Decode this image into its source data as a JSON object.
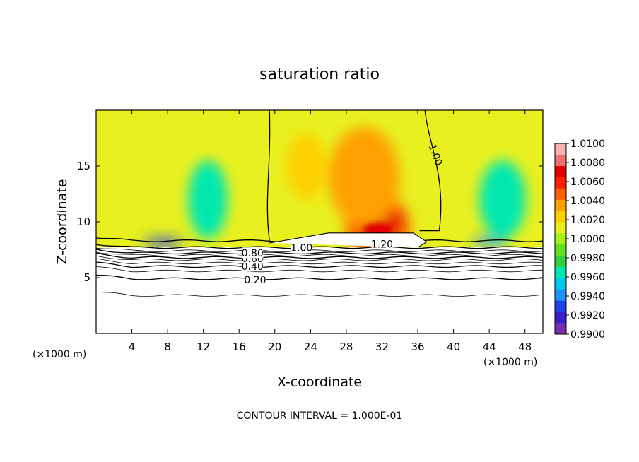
{
  "chart_data": {
    "type": "heatmap",
    "title": "saturation ratio",
    "xlabel": "X-coordinate",
    "ylabel": "Z-coordinate",
    "x_unit_left": "(×1000 m)",
    "x_unit_right": "(×1000 m)",
    "footer": "CONTOUR INTERVAL = 1.000E-01",
    "xlim": [
      0,
      50
    ],
    "ylim": [
      0,
      20
    ],
    "x_ticks": [
      4,
      8,
      12,
      16,
      20,
      24,
      28,
      32,
      36,
      40,
      44,
      48
    ],
    "y_ticks": [
      5,
      10,
      15
    ],
    "colorbar": {
      "min": 0.99,
      "max": 1.01,
      "labels": [
        "1.0100",
        "1.0080",
        "1.0060",
        "1.0040",
        "1.0020",
        "1.0000",
        "0.9980",
        "0.9960",
        "0.9940",
        "0.9920",
        "0.9900"
      ],
      "colors": [
        "#7a2fb0",
        "#3a1fc8",
        "#2040e8",
        "#1e90ff",
        "#00c8e8",
        "#00e8b0",
        "#30d040",
        "#60e020",
        "#a8f020",
        "#e8f020",
        "#ffd000",
        "#ffa000",
        "#ff6000",
        "#ff2000",
        "#e00000",
        "#f07070",
        "#f8b0b0"
      ]
    },
    "contours": [
      {
        "label": "0.20",
        "z_mean": 4.9
      },
      {
        "label": "0.40",
        "z_mean": 6.0
      },
      {
        "label": "0.60",
        "z_mean": 6.8
      },
      {
        "label": "0.80",
        "z_mean": 7.2
      },
      {
        "label": "1.00",
        "z_mean": 7.7
      },
      {
        "label": "1.20",
        "z_mean": 8.3
      }
    ],
    "contour_labels_drawn": [
      {
        "text": "0.20",
        "x": 17.8,
        "z": 4.8
      },
      {
        "text": "0.40",
        "x": 17.5,
        "z": 6.0
      },
      {
        "text": "0.60",
        "x": 17.5,
        "z": 6.7
      },
      {
        "text": "0.80",
        "x": 17.5,
        "z": 7.2
      },
      {
        "text": "1.00",
        "x": 23.0,
        "z": 7.7
      },
      {
        "text": "1.20",
        "x": 32.0,
        "z": 8.0
      },
      {
        "text": "1.00",
        "x": 38.0,
        "z": 16.0
      }
    ],
    "field_features": [
      {
        "name": "max-core",
        "x": 31.5,
        "z": 10.0,
        "value": 1.0075
      },
      {
        "name": "upper-yellow-plume",
        "x": 30.0,
        "z": 14.0,
        "value": 1.003
      },
      {
        "name": "left-yellow-plume",
        "x": 23.5,
        "z": 15.0,
        "value": 1.0022
      },
      {
        "name": "cyan-left",
        "x": 12.5,
        "z": 12.0,
        "value": 0.997
      },
      {
        "name": "cyan-right",
        "x": 45.5,
        "z": 12.0,
        "value": 0.997
      },
      {
        "name": "blue-base-left",
        "x": 7.5,
        "z": 8.2,
        "value": 0.9935
      },
      {
        "name": "blue-base-right",
        "x": 44.0,
        "z": 8.2,
        "value": 0.9945
      }
    ]
  }
}
